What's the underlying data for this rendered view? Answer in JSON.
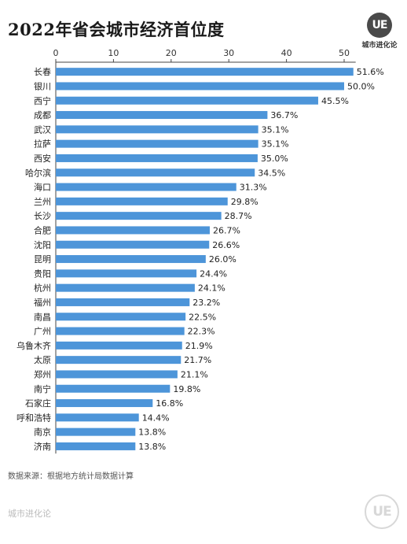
{
  "header": {
    "title": "2022年省会城市经济首位度",
    "logo_mark": "UE",
    "logo_text": "城市进化论"
  },
  "footer": {
    "source": "数据来源：根据地方统计局数据计算",
    "brand": "城市进化论",
    "logo_mark": "UE"
  },
  "colors": {
    "bar": "#4d95d9",
    "axis": "#444444"
  },
  "chart_data": {
    "type": "bar",
    "orientation": "horizontal",
    "categories": [
      "长春",
      "银川",
      "西宁",
      "成都",
      "武汉",
      "拉萨",
      "西安",
      "哈尔滨",
      "海口",
      "兰州",
      "长沙",
      "合肥",
      "沈阳",
      "昆明",
      "贵阳",
      "杭州",
      "福州",
      "南昌",
      "广州",
      "乌鲁木齐",
      "太原",
      "郑州",
      "南宁",
      "石家庄",
      "呼和浩特",
      "南京",
      "济南"
    ],
    "values": [
      51.6,
      50.0,
      45.5,
      36.7,
      35.1,
      35.1,
      35.0,
      34.5,
      31.3,
      29.8,
      28.7,
      26.7,
      26.6,
      26.0,
      24.4,
      24.1,
      23.2,
      22.5,
      22.3,
      21.9,
      21.7,
      21.1,
      19.8,
      16.8,
      14.4,
      13.8,
      13.8
    ],
    "labels": [
      "51.6%",
      "50.0%",
      "45.5%",
      "36.7%",
      "35.1%",
      "35.1%",
      "35.0%",
      "34.5%",
      "31.3%",
      "29.8%",
      "28.7%",
      "26.7%",
      "26.6%",
      "26.0%",
      "24.4%",
      "24.1%",
      "23.2%",
      "22.5%",
      "22.3%",
      "21.9%",
      "21.7%",
      "21.1%",
      "19.8%",
      "16.8%",
      "14.4%",
      "13.8%",
      "13.8%"
    ],
    "xticks": [
      0,
      10,
      20,
      30,
      40,
      50
    ],
    "xlim": [
      0,
      52
    ],
    "axis_position": "top",
    "grid": false,
    "legend": "none"
  }
}
